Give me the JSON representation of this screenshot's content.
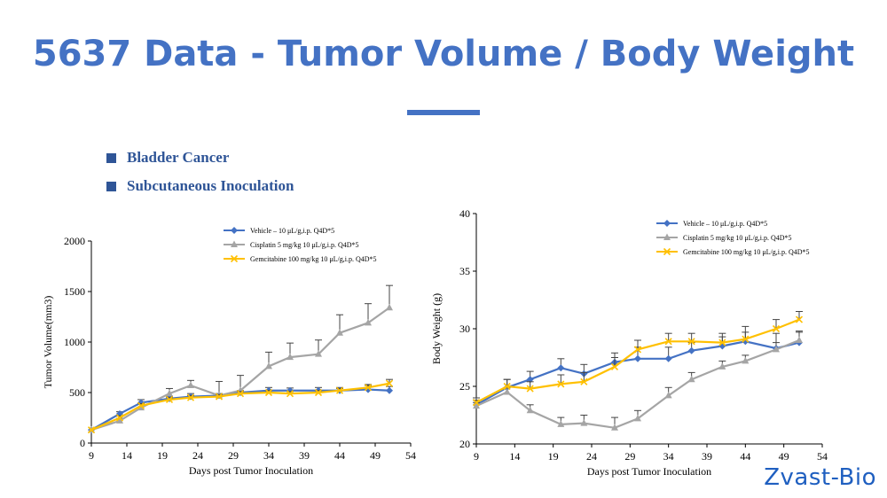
{
  "title": "5637 Data - Tumor Volume / Body Weight",
  "bullets": [
    "Bladder Cancer",
    "Subcutaneous Inoculation"
  ],
  "logo": "Zvast-Bio",
  "colors": {
    "title": "#4472C4",
    "bullet": "#2F5597",
    "vehicle": "#4472C4",
    "cisplatin": "#A5A5A5",
    "gemcitabine": "#FFC000",
    "logo": "#1f5fc0"
  },
  "chart_data": [
    {
      "type": "line",
      "title": "",
      "xlabel": "Days post Tumor Inoculation",
      "ylabel": "Tumor Volume(mm3)",
      "xlim": [
        9,
        54
      ],
      "ylim": [
        0,
        2000
      ],
      "xticks": [
        9,
        14,
        19,
        24,
        29,
        34,
        39,
        44,
        49,
        54
      ],
      "yticks": [
        0,
        500,
        1000,
        1500,
        2000
      ],
      "legend_position": "top-right",
      "series": [
        {
          "name": "Vehicle – 10 μL/g,i.p. Q4D*5",
          "color": "#4472C4",
          "marker": "diamond",
          "x": [
            9,
            13,
            16,
            20,
            23,
            27,
            30,
            34,
            37,
            41,
            44,
            48,
            51
          ],
          "y": [
            130,
            290,
            400,
            440,
            460,
            470,
            500,
            520,
            520,
            520,
            520,
            530,
            520
          ],
          "err": [
            0,
            20,
            30,
            25,
            30,
            20,
            20,
            30,
            25,
            30,
            30,
            40,
            40
          ]
        },
        {
          "name": "Cisplatin 5 mg/kg 10 μL/g,i.p. Q4D*5",
          "color": "#A5A5A5",
          "marker": "triangle",
          "x": [
            9,
            13,
            16,
            20,
            23,
            27,
            30,
            34,
            37,
            41,
            44,
            48,
            51
          ],
          "y": [
            130,
            220,
            350,
            490,
            570,
            470,
            520,
            760,
            850,
            880,
            1090,
            1190,
            1340
          ],
          "err": [
            0,
            25,
            40,
            50,
            50,
            140,
            150,
            140,
            140,
            140,
            180,
            190,
            220
          ]
        },
        {
          "name": "Gemcitabine 100 mg/kg 10 μL/g,i.p. Q4D*5",
          "color": "#FFC000",
          "marker": "x",
          "x": [
            9,
            13,
            16,
            20,
            23,
            27,
            30,
            34,
            37,
            41,
            44,
            48,
            51
          ],
          "y": [
            130,
            250,
            370,
            430,
            450,
            460,
            490,
            500,
            490,
            500,
            520,
            550,
            590
          ],
          "err": [
            0,
            20,
            20,
            20,
            20,
            20,
            20,
            20,
            20,
            20,
            20,
            30,
            40
          ]
        }
      ]
    },
    {
      "type": "line",
      "title": "",
      "xlabel": "Days post Tumor Inoculation",
      "ylabel": "Body Weight (g)",
      "xlim": [
        9,
        54
      ],
      "ylim": [
        20,
        40
      ],
      "xticks": [
        9,
        14,
        19,
        24,
        29,
        34,
        39,
        44,
        49,
        54
      ],
      "yticks": [
        20,
        25,
        30,
        35,
        40
      ],
      "legend_position": "top-right",
      "series": [
        {
          "name": "Vehicle – 10 μL/g,i.p. Q4D*5",
          "color": "#4472C4",
          "marker": "diamond",
          "x": [
            9,
            13,
            16,
            20,
            23,
            27,
            30,
            34,
            37,
            41,
            44,
            48,
            51
          ],
          "y": [
            23.4,
            24.9,
            25.6,
            26.6,
            26.1,
            27.1,
            27.4,
            27.4,
            28.1,
            28.5,
            28.9,
            28.3,
            28.8
          ],
          "err": [
            0.4,
            0.7,
            0.7,
            0.8,
            0.8,
            0.8,
            1.0,
            1.0,
            0.7,
            0.8,
            0.8,
            1.3,
            1.0
          ]
        },
        {
          "name": "Cisplatin 5 mg/kg 10 μL/g,i.p. Q4D*5",
          "color": "#A5A5A5",
          "marker": "triangle",
          "x": [
            9,
            13,
            16,
            20,
            23,
            27,
            30,
            34,
            37,
            41,
            44,
            48,
            51
          ],
          "y": [
            23.3,
            24.5,
            22.9,
            21.7,
            21.8,
            21.4,
            22.2,
            24.2,
            25.6,
            26.7,
            27.2,
            28.2,
            29.0
          ],
          "err": [
            0.3,
            0.4,
            0.5,
            0.6,
            0.7,
            0.9,
            0.7,
            0.7,
            0.6,
            0.5,
            0.5,
            0.6,
            0.7
          ]
        },
        {
          "name": "Gemcitabine 100 mg/kg 10 μL/g,i.p. Q4D*5",
          "color": "#FFC000",
          "marker": "x",
          "x": [
            9,
            13,
            16,
            20,
            23,
            27,
            30,
            34,
            37,
            41,
            44,
            48,
            51
          ],
          "y": [
            23.6,
            25.0,
            24.8,
            25.2,
            25.4,
            26.7,
            28.2,
            28.9,
            28.9,
            28.8,
            29.1,
            30.0,
            30.8
          ],
          "err": [
            0.4,
            0.6,
            0.6,
            0.8,
            0.8,
            0.8,
            0.8,
            0.7,
            0.7,
            0.8,
            1.1,
            0.8,
            0.7
          ]
        }
      ]
    }
  ]
}
